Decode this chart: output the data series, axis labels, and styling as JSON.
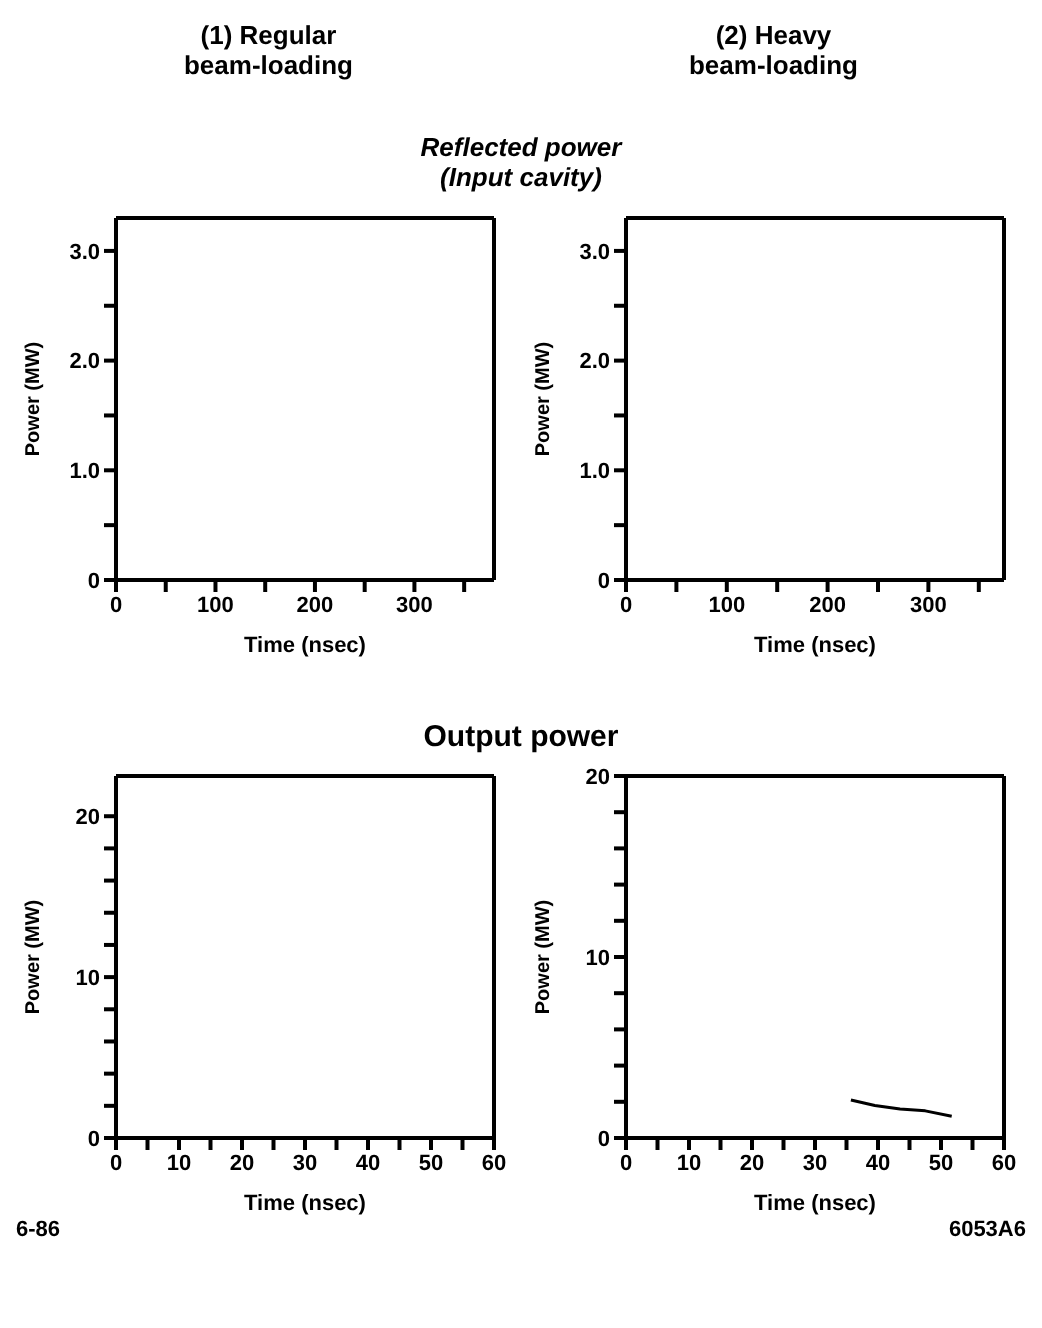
{
  "chart_data": [
    {
      "type": "line",
      "title": "(1) Regular beam-loading",
      "subtitle": "Reflected power (Input cavity)",
      "xlabel": "Time (nsec)",
      "ylabel": "Power (MW)",
      "xlim": [
        0,
        380
      ],
      "xticks": [
        0,
        {
          "value": 50,
          "label": null
        },
        100,
        {
          "value": 150,
          "label": null
        },
        200,
        {
          "value": 250,
          "label": null
        },
        300,
        {
          "value": 350,
          "label": null
        }
      ],
      "ylim": [
        0,
        3.3
      ],
      "yticks": [
        0,
        {
          "value": 0.5,
          "label": null
        },
        {
          "value": 1,
          "label": "1.0"
        },
        {
          "value": 1.5,
          "label": null
        },
        {
          "value": 2,
          "label": "2.0"
        },
        {
          "value": 2.5,
          "label": null
        },
        {
          "value": 3,
          "label": "3.0"
        }
      ]
    },
    {
      "type": "line",
      "title": "(2) Heavy beam-loading",
      "xlabel": "Time (nsec)",
      "ylabel": "Power (MW)",
      "xlim": [
        0,
        375
      ],
      "xticks": [
        0,
        {
          "value": 50,
          "label": null
        },
        100,
        {
          "value": 150,
          "label": null
        },
        200,
        {
          "value": 250,
          "label": null
        },
        300,
        {
          "value": 350,
          "label": null
        }
      ],
      "ylim": [
        0,
        3.3
      ],
      "yticks": [
        0,
        {
          "value": 0.5,
          "label": null
        },
        {
          "value": 1,
          "label": "1.0"
        },
        {
          "value": 1.5,
          "label": null
        },
        {
          "value": 2,
          "label": "2.0"
        },
        {
          "value": 2.5,
          "label": null
        },
        {
          "value": 3,
          "label": "3.0"
        }
      ]
    },
    {
      "type": "line",
      "title": "Output power",
      "xlabel": "Time (nsec)",
      "ylabel": "Power (MW)",
      "annotations": [
        "6-86"
      ],
      "xlim": [
        0,
        60
      ],
      "xticks": [
        0,
        {
          "value": 5,
          "label": null
        },
        10,
        {
          "value": 15,
          "label": null
        },
        20,
        {
          "value": 25,
          "label": null
        },
        30,
        {
          "value": 35,
          "label": null
        },
        40,
        {
          "value": 45,
          "label": null
        },
        50,
        {
          "value": 55,
          "label": null
        },
        60
      ],
      "ylim": [
        0,
        22.5
      ],
      "yticks": [
        0,
        {
          "value": 2,
          "label": null
        },
        {
          "value": 4,
          "label": null
        },
        {
          "value": 6,
          "label": null
        },
        {
          "value": 8,
          "label": null
        },
        10,
        {
          "value": 12,
          "label": null
        },
        {
          "value": 14,
          "label": null
        },
        {
          "value": 16,
          "label": null
        },
        {
          "value": 18,
          "label": null
        },
        20
      ]
    },
    {
      "type": "line",
      "xlabel": "Time (nsec)",
      "ylabel": "Power (MW)",
      "annotations": [
        "6053A6"
      ],
      "xlim": [
        0,
        60
      ],
      "xticks": [
        0,
        {
          "value": 5,
          "label": null
        },
        10,
        {
          "value": 15,
          "label": null
        },
        20,
        {
          "value": 25,
          "label": null
        },
        30,
        {
          "value": 35,
          "label": null
        },
        40,
        {
          "value": 45,
          "label": null
        },
        50,
        {
          "value": 55,
          "label": null
        },
        60
      ],
      "ylim": [
        0,
        20
      ],
      "yticks": [
        0,
        {
          "value": 2,
          "label": null
        },
        {
          "value": 4,
          "label": null
        },
        {
          "value": 6,
          "label": null
        },
        {
          "value": 8,
          "label": null
        },
        10,
        {
          "value": 12,
          "label": null
        },
        {
          "value": 14,
          "label": null
        },
        {
          "value": 16,
          "label": null
        },
        {
          "value": 18,
          "label": null
        },
        20
      ],
      "series": [
        {
          "color": "#000000",
          "x": [
            35.7,
            39.5,
            43.5,
            47.5,
            51.7
          ],
          "values": [
            2.1,
            1.8,
            1.6,
            1.5,
            1.2
          ]
        }
      ]
    }
  ]
}
